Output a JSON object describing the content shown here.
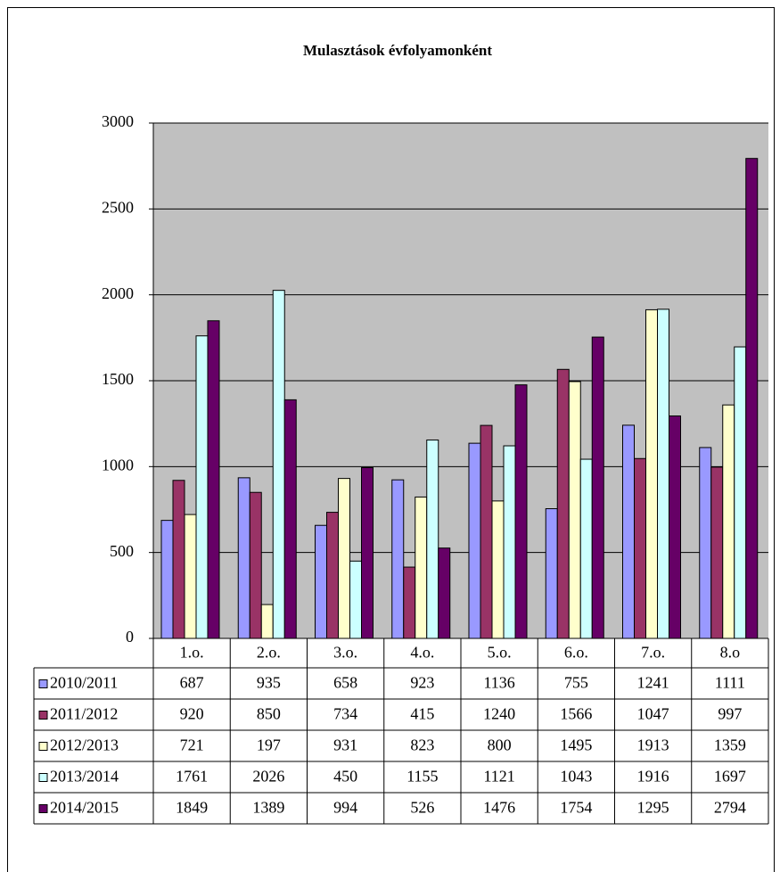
{
  "chart_data": {
    "type": "bar",
    "title": "Mulasztások évfolyamonként",
    "categories": [
      "1.o.",
      "2.o.",
      "3.o.",
      "4.o.",
      "5.o.",
      "6.o.",
      "7.o.",
      "8.o"
    ],
    "series": [
      {
        "name": "2010/2011",
        "color": "#9999ff",
        "values": [
          687,
          935,
          658,
          923,
          1136,
          755,
          1241,
          1111
        ]
      },
      {
        "name": "2011/2012",
        "color": "#993366",
        "values": [
          920,
          850,
          734,
          415,
          1240,
          1566,
          1047,
          997
        ]
      },
      {
        "name": "2012/2013",
        "color": "#ffffcc",
        "values": [
          721,
          197,
          931,
          823,
          800,
          1495,
          1913,
          1359
        ]
      },
      {
        "name": "2013/2014",
        "color": "#ccffff",
        "values": [
          1761,
          2026,
          450,
          1155,
          1121,
          1043,
          1916,
          1697
        ]
      },
      {
        "name": "2014/2015",
        "color": "#660066",
        "values": [
          1849,
          1389,
          994,
          526,
          1476,
          1754,
          1295,
          2794
        ]
      }
    ],
    "ylim": [
      0,
      3000
    ],
    "yticks": [
      0,
      500,
      1000,
      1500,
      2000,
      2500,
      3000
    ],
    "grid": true,
    "plot_background": "#c0c0c0"
  }
}
